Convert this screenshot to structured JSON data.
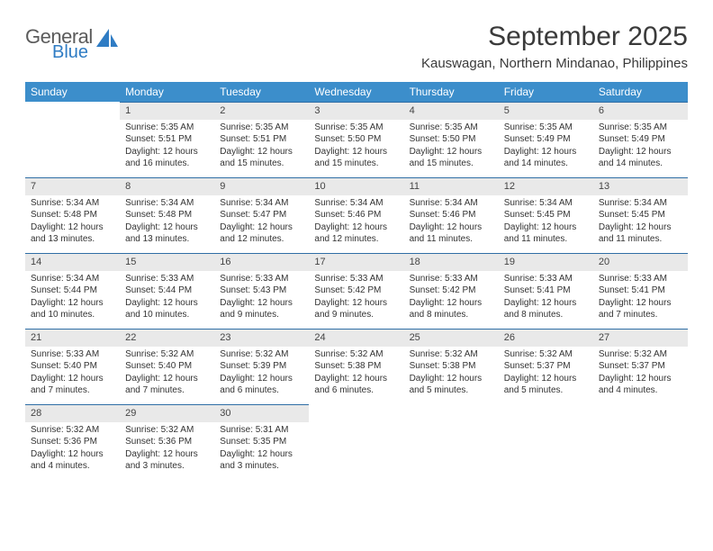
{
  "logo": {
    "text_general": "General",
    "text_blue": "Blue"
  },
  "header": {
    "month_title": "September 2025",
    "location": "Kauswagan, Northern Mindanao, Philippines"
  },
  "colors": {
    "header_bg": "#3c8ecb",
    "header_text": "#ffffff",
    "daynum_bg": "#e9e9e9",
    "row_divider": "#2f6ea5",
    "logo_gray": "#5b5b5b",
    "logo_blue": "#2f7cc4",
    "body_text": "#333333"
  },
  "weekdays": [
    "Sunday",
    "Monday",
    "Tuesday",
    "Wednesday",
    "Thursday",
    "Friday",
    "Saturday"
  ],
  "weeks": [
    [
      null,
      {
        "n": "1",
        "sr": "Sunrise: 5:35 AM",
        "ss": "Sunset: 5:51 PM",
        "d1": "Daylight: 12 hours",
        "d2": "and 16 minutes."
      },
      {
        "n": "2",
        "sr": "Sunrise: 5:35 AM",
        "ss": "Sunset: 5:51 PM",
        "d1": "Daylight: 12 hours",
        "d2": "and 15 minutes."
      },
      {
        "n": "3",
        "sr": "Sunrise: 5:35 AM",
        "ss": "Sunset: 5:50 PM",
        "d1": "Daylight: 12 hours",
        "d2": "and 15 minutes."
      },
      {
        "n": "4",
        "sr": "Sunrise: 5:35 AM",
        "ss": "Sunset: 5:50 PM",
        "d1": "Daylight: 12 hours",
        "d2": "and 15 minutes."
      },
      {
        "n": "5",
        "sr": "Sunrise: 5:35 AM",
        "ss": "Sunset: 5:49 PM",
        "d1": "Daylight: 12 hours",
        "d2": "and 14 minutes."
      },
      {
        "n": "6",
        "sr": "Sunrise: 5:35 AM",
        "ss": "Sunset: 5:49 PM",
        "d1": "Daylight: 12 hours",
        "d2": "and 14 minutes."
      }
    ],
    [
      {
        "n": "7",
        "sr": "Sunrise: 5:34 AM",
        "ss": "Sunset: 5:48 PM",
        "d1": "Daylight: 12 hours",
        "d2": "and 13 minutes."
      },
      {
        "n": "8",
        "sr": "Sunrise: 5:34 AM",
        "ss": "Sunset: 5:48 PM",
        "d1": "Daylight: 12 hours",
        "d2": "and 13 minutes."
      },
      {
        "n": "9",
        "sr": "Sunrise: 5:34 AM",
        "ss": "Sunset: 5:47 PM",
        "d1": "Daylight: 12 hours",
        "d2": "and 12 minutes."
      },
      {
        "n": "10",
        "sr": "Sunrise: 5:34 AM",
        "ss": "Sunset: 5:46 PM",
        "d1": "Daylight: 12 hours",
        "d2": "and 12 minutes."
      },
      {
        "n": "11",
        "sr": "Sunrise: 5:34 AM",
        "ss": "Sunset: 5:46 PM",
        "d1": "Daylight: 12 hours",
        "d2": "and 11 minutes."
      },
      {
        "n": "12",
        "sr": "Sunrise: 5:34 AM",
        "ss": "Sunset: 5:45 PM",
        "d1": "Daylight: 12 hours",
        "d2": "and 11 minutes."
      },
      {
        "n": "13",
        "sr": "Sunrise: 5:34 AM",
        "ss": "Sunset: 5:45 PM",
        "d1": "Daylight: 12 hours",
        "d2": "and 11 minutes."
      }
    ],
    [
      {
        "n": "14",
        "sr": "Sunrise: 5:34 AM",
        "ss": "Sunset: 5:44 PM",
        "d1": "Daylight: 12 hours",
        "d2": "and 10 minutes."
      },
      {
        "n": "15",
        "sr": "Sunrise: 5:33 AM",
        "ss": "Sunset: 5:44 PM",
        "d1": "Daylight: 12 hours",
        "d2": "and 10 minutes."
      },
      {
        "n": "16",
        "sr": "Sunrise: 5:33 AM",
        "ss": "Sunset: 5:43 PM",
        "d1": "Daylight: 12 hours",
        "d2": "and 9 minutes."
      },
      {
        "n": "17",
        "sr": "Sunrise: 5:33 AM",
        "ss": "Sunset: 5:42 PM",
        "d1": "Daylight: 12 hours",
        "d2": "and 9 minutes."
      },
      {
        "n": "18",
        "sr": "Sunrise: 5:33 AM",
        "ss": "Sunset: 5:42 PM",
        "d1": "Daylight: 12 hours",
        "d2": "and 8 minutes."
      },
      {
        "n": "19",
        "sr": "Sunrise: 5:33 AM",
        "ss": "Sunset: 5:41 PM",
        "d1": "Daylight: 12 hours",
        "d2": "and 8 minutes."
      },
      {
        "n": "20",
        "sr": "Sunrise: 5:33 AM",
        "ss": "Sunset: 5:41 PM",
        "d1": "Daylight: 12 hours",
        "d2": "and 7 minutes."
      }
    ],
    [
      {
        "n": "21",
        "sr": "Sunrise: 5:33 AM",
        "ss": "Sunset: 5:40 PM",
        "d1": "Daylight: 12 hours",
        "d2": "and 7 minutes."
      },
      {
        "n": "22",
        "sr": "Sunrise: 5:32 AM",
        "ss": "Sunset: 5:40 PM",
        "d1": "Daylight: 12 hours",
        "d2": "and 7 minutes."
      },
      {
        "n": "23",
        "sr": "Sunrise: 5:32 AM",
        "ss": "Sunset: 5:39 PM",
        "d1": "Daylight: 12 hours",
        "d2": "and 6 minutes."
      },
      {
        "n": "24",
        "sr": "Sunrise: 5:32 AM",
        "ss": "Sunset: 5:38 PM",
        "d1": "Daylight: 12 hours",
        "d2": "and 6 minutes."
      },
      {
        "n": "25",
        "sr": "Sunrise: 5:32 AM",
        "ss": "Sunset: 5:38 PM",
        "d1": "Daylight: 12 hours",
        "d2": "and 5 minutes."
      },
      {
        "n": "26",
        "sr": "Sunrise: 5:32 AM",
        "ss": "Sunset: 5:37 PM",
        "d1": "Daylight: 12 hours",
        "d2": "and 5 minutes."
      },
      {
        "n": "27",
        "sr": "Sunrise: 5:32 AM",
        "ss": "Sunset: 5:37 PM",
        "d1": "Daylight: 12 hours",
        "d2": "and 4 minutes."
      }
    ],
    [
      {
        "n": "28",
        "sr": "Sunrise: 5:32 AM",
        "ss": "Sunset: 5:36 PM",
        "d1": "Daylight: 12 hours",
        "d2": "and 4 minutes."
      },
      {
        "n": "29",
        "sr": "Sunrise: 5:32 AM",
        "ss": "Sunset: 5:36 PM",
        "d1": "Daylight: 12 hours",
        "d2": "and 3 minutes."
      },
      {
        "n": "30",
        "sr": "Sunrise: 5:31 AM",
        "ss": "Sunset: 5:35 PM",
        "d1": "Daylight: 12 hours",
        "d2": "and 3 minutes."
      },
      null,
      null,
      null,
      null
    ]
  ]
}
